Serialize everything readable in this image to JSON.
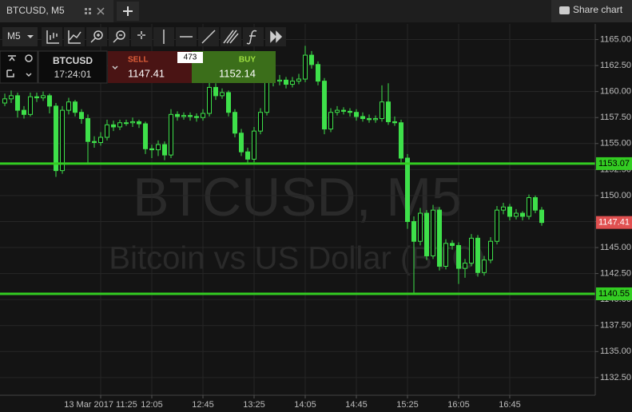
{
  "tab": {
    "title": "BTCUSD, M5",
    "share": "Share chart"
  },
  "toolbar": {
    "timeframe": "M5"
  },
  "trade_panel": {
    "symbol": "BTCUSD",
    "time": "17:24:01",
    "sell_label": "SELL",
    "sell_price": "1147.41",
    "spread": "473",
    "buy_label": "BUY",
    "buy_price": "1152.14"
  },
  "chart_data": {
    "type": "candlestick",
    "watermark": "BTCUSD, M5",
    "watermark_sub": "Bitcoin vs US Dollar (BTC)",
    "categories": [
      null,
      null,
      null,
      null,
      null,
      null,
      null,
      null,
      null,
      null,
      null,
      null,
      null,
      null,
      null,
      "13 Mar 2017 11:25",
      null,
      null,
      null,
      null,
      null,
      null,
      null,
      "12:05",
      null,
      null,
      null,
      null,
      null,
      null,
      null,
      "12:45",
      null,
      null,
      null,
      null,
      null,
      null,
      null,
      "13:25",
      null,
      null,
      null,
      null,
      null,
      null,
      null,
      "14:05",
      null,
      null,
      null,
      null,
      null,
      null,
      null,
      "14:45",
      null,
      null,
      null,
      null,
      null,
      null,
      null,
      "15:25",
      null,
      null,
      null,
      null,
      null,
      null,
      null,
      "16:05",
      null,
      null,
      null,
      null,
      null,
      null,
      null,
      "16:45",
      null,
      null,
      null,
      null,
      null
    ],
    "open": [
      1158.9,
      1159.3,
      1159.6,
      1158.2,
      1157.8,
      1159.5,
      1159.4,
      1159.6,
      1158.6,
      1152.4,
      1158.2,
      1159.0,
      1158.0,
      1157.4,
      1155.2,
      1155.1,
      1155.6,
      1156.8,
      1156.6,
      1157.0,
      1157.0,
      1157.1,
      1156.9,
      1154.5,
      1154.4,
      1154.9,
      1153.9,
      1157.8,
      1157.6,
      1157.7,
      1157.6,
      1157.5,
      1157.9,
      1160.4,
      1159.6,
      1159.9,
      1158.0,
      1156.0,
      1154.2,
      1153.5,
      1156.2,
      1158.0,
      1160.9,
      1161.0,
      1161.1,
      1160.7,
      1161.0,
      1161.2,
      1163.5,
      1162.6,
      1161.0,
      1156.4,
      1158.0,
      1158.2,
      1158.1,
      1158.0,
      1157.6,
      1157.4,
      1157.3,
      1157.4,
      1159.0,
      1157.1,
      1157.0,
      1153.6,
      1147.5,
      1145.6,
      1148.3,
      1144.2,
      1148.6,
      1143.2,
      1145.4,
      1145.2,
      1143.0,
      1143.5,
      1145.9,
      1142.6,
      1143.8,
      1145.6,
      1148.6,
      1148.9,
      1148.0,
      1148.3,
      1148.0,
      1149.8,
      1148.6
    ],
    "high": [
      1159.8,
      1160.1,
      1159.9,
      1158.6,
      1159.9,
      1159.9,
      1160.0,
      1159.8,
      1158.9,
      1158.6,
      1159.4,
      1159.2,
      1158.3,
      1157.8,
      1155.7,
      1156.1,
      1157.3,
      1157.2,
      1157.3,
      1157.3,
      1157.5,
      1157.3,
      1157.1,
      1154.9,
      1155.3,
      1155.2,
      1158.3,
      1158.1,
      1158.0,
      1158.0,
      1157.9,
      1158.3,
      1161.0,
      1160.8,
      1160.3,
      1160.1,
      1158.3,
      1156.4,
      1154.6,
      1156.6,
      1158.4,
      1161.4,
      1161.5,
      1161.6,
      1161.4,
      1161.4,
      1161.7,
      1164.4,
      1163.9,
      1162.9,
      1161.3,
      1158.4,
      1158.6,
      1158.5,
      1158.4,
      1158.3,
      1158.0,
      1157.8,
      1157.7,
      1160.6,
      1160.8,
      1157.6,
      1157.3,
      1154.0,
      1148.0,
      1148.8,
      1148.6,
      1149.1,
      1148.9,
      1145.8,
      1145.7,
      1145.5,
      1143.9,
      1146.3,
      1146.2,
      1144.2,
      1146.0,
      1149.0,
      1149.3,
      1149.2,
      1148.7,
      1148.5,
      1150.1,
      1150.0,
      1148.9
    ],
    "low": [
      1158.6,
      1158.9,
      1157.5,
      1157.4,
      1157.6,
      1159.0,
      1159.1,
      1157.9,
      1151.8,
      1152.1,
      1157.8,
      1157.6,
      1156.9,
      1153.1,
      1154.6,
      1154.8,
      1155.3,
      1156.2,
      1156.3,
      1156.7,
      1156.6,
      1156.5,
      1154.0,
      1153.6,
      1153.8,
      1153.4,
      1153.6,
      1157.2,
      1157.3,
      1157.2,
      1157.1,
      1157.2,
      1157.6,
      1159.2,
      1159.3,
      1157.6,
      1155.6,
      1153.8,
      1153.1,
      1153.2,
      1155.9,
      1157.7,
      1160.5,
      1160.6,
      1160.3,
      1160.4,
      1160.7,
      1160.9,
      1162.2,
      1160.6,
      1155.9,
      1156.1,
      1157.7,
      1157.8,
      1157.6,
      1157.2,
      1157.1,
      1157.0,
      1157.0,
      1157.1,
      1156.8,
      1156.7,
      1153.2,
      1146.8,
      1140.6,
      1145.2,
      1143.8,
      1143.9,
      1142.8,
      1142.9,
      1144.8,
      1141.5,
      1142.1,
      1143.2,
      1142.2,
      1142.3,
      1143.5,
      1145.3,
      1148.2,
      1147.6,
      1147.7,
      1147.6,
      1147.7,
      1148.3,
      1147.1
    ],
    "close": [
      1159.3,
      1159.6,
      1158.2,
      1157.8,
      1159.5,
      1159.4,
      1159.6,
      1158.6,
      1152.4,
      1158.2,
      1159.0,
      1158.0,
      1157.4,
      1155.2,
      1155.1,
      1155.6,
      1156.8,
      1156.6,
      1157.0,
      1157.0,
      1157.1,
      1156.9,
      1154.5,
      1154.4,
      1154.9,
      1153.9,
      1157.8,
      1157.6,
      1157.7,
      1157.6,
      1157.5,
      1157.9,
      1160.4,
      1159.6,
      1159.9,
      1158.0,
      1156.0,
      1154.2,
      1153.5,
      1156.2,
      1158.0,
      1160.9,
      1161.0,
      1161.1,
      1160.7,
      1161.0,
      1161.2,
      1163.5,
      1162.6,
      1161.0,
      1156.4,
      1158.0,
      1158.2,
      1158.1,
      1158.0,
      1157.6,
      1157.4,
      1157.3,
      1157.4,
      1159.0,
      1157.1,
      1157.0,
      1153.6,
      1147.5,
      1145.6,
      1148.3,
      1144.2,
      1148.6,
      1143.2,
      1145.4,
      1145.2,
      1143.0,
      1143.5,
      1145.9,
      1142.6,
      1143.8,
      1145.6,
      1148.6,
      1148.9,
      1148.0,
      1148.3,
      1148.0,
      1149.8,
      1148.6,
      1147.41
    ],
    "up_color": "#3ee04a",
    "down_color": "#3ee04a",
    "ylim": [
      1130.8,
      1166.5
    ],
    "yticks": [
      {
        "value": 1132.5,
        "label": "1132.50"
      },
      {
        "value": 1135,
        "label": "1135.00"
      },
      {
        "value": 1137.5,
        "label": "1137.50"
      },
      {
        "value": 1140,
        "label": "1140.00"
      },
      {
        "value": 1142.5,
        "label": "1142.50"
      },
      {
        "value": 1145,
        "label": "1145.00"
      },
      {
        "value": 1147.5,
        "label": "1147.50"
      },
      {
        "value": 1150,
        "label": "1150.00"
      },
      {
        "value": 1152.5,
        "label": "1152.50"
      },
      {
        "value": 1155,
        "label": "1155.00"
      },
      {
        "value": 1157.5,
        "label": "1157.50"
      },
      {
        "value": 1160,
        "label": "1160.00"
      },
      {
        "value": 1162.5,
        "label": "1162.50"
      },
      {
        "value": 1165,
        "label": "1165.00"
      }
    ],
    "hlines": [
      1153.07,
      1140.55
    ],
    "hline_color": "#33cc22",
    "last_price": 1147.41,
    "last_price_color": "#e05050",
    "grid": true
  }
}
